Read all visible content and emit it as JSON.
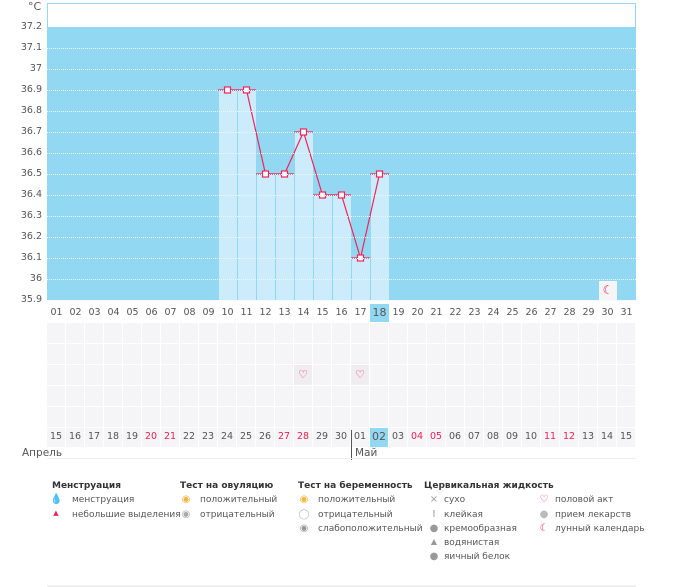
{
  "chart_data": {
    "type": "bar+line",
    "ylabel": "°C",
    "ylim": [
      35.9,
      37.2
    ],
    "yticks": [
      "37.2",
      "37.1",
      "37",
      "36.9",
      "36.8",
      "36.7",
      "36.6",
      "36.5",
      "36.4",
      "36.3",
      "36.2",
      "36.1",
      "36",
      "35.9"
    ],
    "cycle_days": [
      "01",
      "02",
      "03",
      "04",
      "05",
      "06",
      "07",
      "08",
      "09",
      "10",
      "11",
      "12",
      "13",
      "14",
      "15",
      "16",
      "17",
      "18",
      "19",
      "20",
      "21",
      "22",
      "23",
      "24",
      "25",
      "26",
      "27",
      "28",
      "29",
      "30",
      "31"
    ],
    "points": [
      {
        "day": 10,
        "temp": 36.9
      },
      {
        "day": 11,
        "temp": 36.9
      },
      {
        "day": 12,
        "temp": 36.5
      },
      {
        "day": 13,
        "temp": 36.5
      },
      {
        "day": 14,
        "temp": 36.7
      },
      {
        "day": 15,
        "temp": 36.4
      },
      {
        "day": 16,
        "temp": 36.4
      },
      {
        "day": 17,
        "temp": 36.1
      },
      {
        "day": 18,
        "temp": 36.5
      }
    ],
    "current_day": 18,
    "moon_day": 30,
    "intercourse_days": [
      14,
      17
    ],
    "dates": [
      "15",
      "16",
      "17",
      "18",
      "19",
      "20",
      "21",
      "22",
      "23",
      "24",
      "25",
      "26",
      "27",
      "28",
      "29",
      "30",
      "01",
      "02",
      "03",
      "04",
      "05",
      "06",
      "07",
      "08",
      "09",
      "10",
      "11",
      "12",
      "13",
      "14",
      "15"
    ],
    "weekend_indices": [
      5,
      6,
      12,
      13,
      19,
      20,
      26,
      27
    ],
    "months": [
      {
        "label": "Апрель"
      },
      {
        "label": "Май"
      }
    ],
    "colors": {
      "background": "#93d8f2",
      "bar": "#ccecfb",
      "line": "#f0245a",
      "weekend": "#e8234f"
    }
  },
  "legend": {
    "menstruation": {
      "title": "Менструация",
      "items": [
        "менструация",
        "небольшие выделения"
      ]
    },
    "ovulation": {
      "title": "Тест на овуляцию",
      "items": [
        "положительный",
        "отрицательный"
      ]
    },
    "pregnancy": {
      "title": "Тест на беременность",
      "items": [
        "положительный",
        "отрицательный",
        "слабоположительный"
      ]
    },
    "cervical": {
      "title": "Цервикальная жидкость",
      "items": [
        "сухо",
        "клейкая",
        "кремообразная",
        "водянистая",
        "яичный белок"
      ]
    },
    "other": {
      "items": [
        "половой акт",
        "прием лекарств",
        "лунный календарь"
      ]
    }
  }
}
